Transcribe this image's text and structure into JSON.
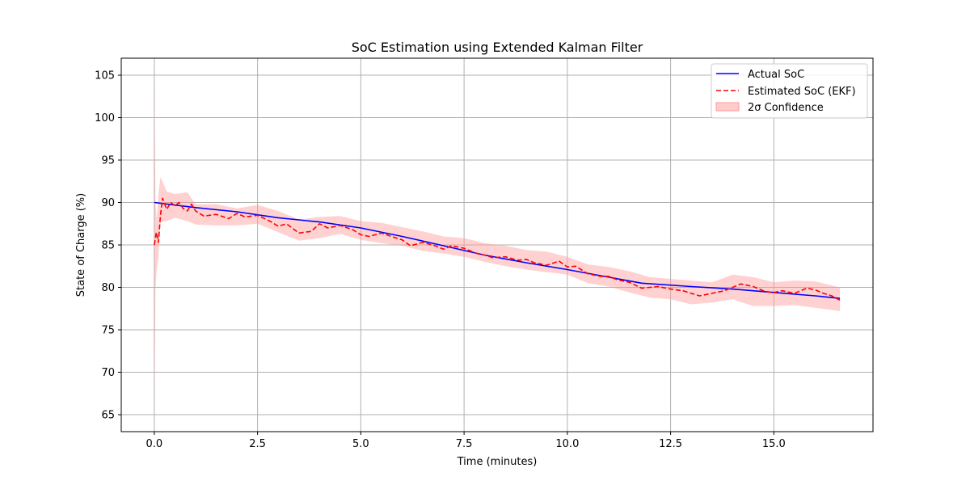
{
  "chart_data": {
    "type": "line",
    "title": "SoC Estimation using Extended Kalman Filter",
    "xlabel": "Time (minutes)",
    "ylabel": "State of Charge (%)",
    "xlim": [
      -0.8,
      17.4
    ],
    "ylim": [
      63,
      107
    ],
    "xticks": [
      0,
      2.5,
      5,
      7.5,
      10,
      12.5,
      15
    ],
    "xtick_labels": [
      "0.0",
      "2.5",
      "5.0",
      "7.5",
      "10.0",
      "12.5",
      "15.0"
    ],
    "yticks": [
      65,
      70,
      75,
      80,
      85,
      90,
      95,
      100,
      105
    ],
    "ytick_labels": [
      "65",
      "70",
      "75",
      "80",
      "85",
      "90",
      "95",
      "100",
      "105"
    ],
    "grid": true,
    "legend_position": "top-right",
    "series": [
      {
        "name": "Actual SoC",
        "style": "solid",
        "color": "#0000ff",
        "x": [
          0,
          1,
          2,
          3,
          4,
          5,
          6,
          7,
          8,
          9,
          10,
          11,
          11.8,
          13,
          14,
          15,
          16,
          16.6
        ],
        "y": [
          90.0,
          89.4,
          88.9,
          88.2,
          87.7,
          87.0,
          86.0,
          84.9,
          83.8,
          82.9,
          82.1,
          81.2,
          80.5,
          80.1,
          79.8,
          79.4,
          79.0,
          78.7
        ]
      },
      {
        "name": "Estimated SoC (EKF)",
        "style": "dashed",
        "color": "#ff0000",
        "x": [
          0,
          0.05,
          0.1,
          0.15,
          0.2,
          0.3,
          0.4,
          0.5,
          0.6,
          0.7,
          0.8,
          0.9,
          1.0,
          1.2,
          1.5,
          1.8,
          2.0,
          2.2,
          2.5,
          2.8,
          3.0,
          3.2,
          3.5,
          3.8,
          4.0,
          4.2,
          4.5,
          4.8,
          5.0,
          5.2,
          5.5,
          5.8,
          6.0,
          6.2,
          6.5,
          6.8,
          7.0,
          7.2,
          7.5,
          7.8,
          8.0,
          8.2,
          8.5,
          8.8,
          9.0,
          9.2,
          9.5,
          9.8,
          10.0,
          10.2,
          10.5,
          10.8,
          11.0,
          11.2,
          11.5,
          11.8,
          12.0,
          12.2,
          12.5,
          12.8,
          13.0,
          13.2,
          13.5,
          13.8,
          14.0,
          14.2,
          14.5,
          14.8,
          15.0,
          15.2,
          15.5,
          15.8,
          16.0,
          16.2,
          16.4,
          16.6
        ],
        "y": [
          85.0,
          86.5,
          85.3,
          88.5,
          90.5,
          89.2,
          90.0,
          89.6,
          90.0,
          89.3,
          89.0,
          89.8,
          89.0,
          88.4,
          88.6,
          88.1,
          88.7,
          88.3,
          88.5,
          87.8,
          87.2,
          87.5,
          86.4,
          86.6,
          87.5,
          87.0,
          87.3,
          86.8,
          86.2,
          86.0,
          86.4,
          85.9,
          85.6,
          84.9,
          85.3,
          84.9,
          84.5,
          84.9,
          84.6,
          84.0,
          83.8,
          83.5,
          83.6,
          83.2,
          83.3,
          82.9,
          82.6,
          83.1,
          82.4,
          82.5,
          81.6,
          81.3,
          81.3,
          80.9,
          80.6,
          79.9,
          80.0,
          80.1,
          79.8,
          79.6,
          79.3,
          79.0,
          79.3,
          79.6,
          80.0,
          80.4,
          80.1,
          79.5,
          79.4,
          79.6,
          79.3,
          79.9,
          79.7,
          79.3,
          79.0,
          78.5
        ]
      }
    ],
    "confidence_band": {
      "name": "2σ Confidence",
      "color": "#ff9999",
      "x": [
        0,
        0.03,
        0.06,
        0.1,
        0.15,
        0.2,
        0.3,
        0.5,
        0.8,
        1.0,
        1.5,
        2.0,
        2.5,
        3.0,
        3.5,
        4.0,
        4.5,
        5.0,
        5.5,
        6.0,
        6.5,
        7.0,
        7.5,
        8.0,
        8.5,
        9.0,
        9.5,
        10.0,
        10.5,
        11.0,
        11.5,
        12.0,
        12.5,
        13.0,
        13.5,
        14.0,
        14.5,
        15.0,
        15.5,
        16.0,
        16.6
      ],
      "upper": [
        105.0,
        90.0,
        88.0,
        91.0,
        93.0,
        92.5,
        91.3,
        91.0,
        91.2,
        89.8,
        89.8,
        89.3,
        89.7,
        89.0,
        88.0,
        88.3,
        88.4,
        87.8,
        87.6,
        87.1,
        86.6,
        86.0,
        85.8,
        85.2,
        84.9,
        84.4,
        84.2,
        83.6,
        82.7,
        82.4,
        81.9,
        81.2,
        81.0,
        80.8,
        80.6,
        81.5,
        81.2,
        80.6,
        80.8,
        80.7,
        80.0
      ],
      "lower": [
        65.0,
        80.0,
        82.0,
        83.5,
        87.5,
        87.8,
        87.8,
        88.2,
        87.8,
        87.4,
        87.3,
        87.3,
        87.5,
        86.5,
        85.5,
        85.8,
        86.3,
        85.6,
        85.2,
        84.9,
        84.3,
        84.0,
        83.6,
        83.0,
        82.5,
        82.1,
        81.8,
        81.5,
        80.5,
        80.1,
        79.4,
        78.8,
        78.6,
        78.0,
        78.2,
        78.6,
        77.8,
        77.8,
        77.9,
        77.6,
        77.2
      ]
    }
  }
}
